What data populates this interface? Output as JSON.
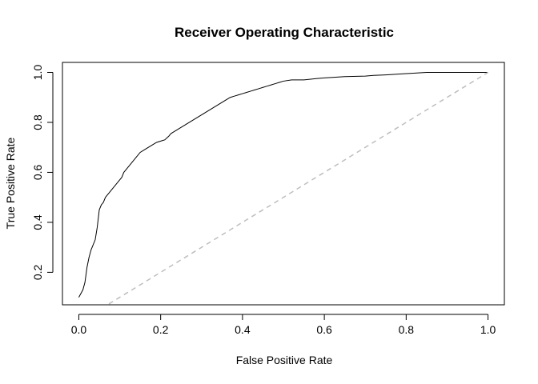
{
  "chart_data": {
    "type": "line",
    "title": "Receiver Operating Characteristic",
    "xlabel": "False Positive Rate",
    "ylabel": "True Positive Rate",
    "xlim": [
      -0.04,
      1.04
    ],
    "ylim": [
      0.07,
      1.04
    ],
    "x_ticks": [
      0.0,
      0.2,
      0.4,
      0.6,
      0.8,
      1.0
    ],
    "x_tick_labels": [
      "0.0",
      "0.2",
      "0.4",
      "0.6",
      "0.8",
      "1.0"
    ],
    "y_ticks": [
      0.2,
      0.4,
      0.6,
      0.8,
      1.0
    ],
    "y_tick_labels": [
      "0.2",
      "0.4",
      "0.6",
      "0.8",
      "1.0"
    ],
    "grid": false,
    "legend": "none",
    "series": [
      {
        "style": "solid",
        "color": "#000000",
        "x": [
          0.0,
          0.01,
          0.015,
          0.02,
          0.025,
          0.03,
          0.04,
          0.045,
          0.05,
          0.055,
          0.06,
          0.065,
          0.07,
          0.075,
          0.08,
          0.085,
          0.09,
          0.095,
          0.1,
          0.105,
          0.11,
          0.12,
          0.125,
          0.13,
          0.14,
          0.15,
          0.16,
          0.17,
          0.18,
          0.19,
          0.2,
          0.21,
          0.22,
          0.225,
          0.23,
          0.25,
          0.26,
          0.27,
          0.28,
          0.29,
          0.3,
          0.31,
          0.32,
          0.33,
          0.34,
          0.35,
          0.36,
          0.37,
          0.38,
          0.39,
          0.4,
          0.41,
          0.42,
          0.43,
          0.44,
          0.45,
          0.46,
          0.47,
          0.48,
          0.49,
          0.5,
          0.52,
          0.55,
          0.58,
          0.6,
          0.62,
          0.65,
          0.7,
          0.72,
          0.75,
          0.8,
          0.85,
          1.0
        ],
        "y": [
          0.1,
          0.13,
          0.16,
          0.22,
          0.26,
          0.29,
          0.33,
          0.38,
          0.45,
          0.47,
          0.48,
          0.5,
          0.51,
          0.52,
          0.53,
          0.54,
          0.55,
          0.56,
          0.57,
          0.58,
          0.6,
          0.62,
          0.63,
          0.64,
          0.66,
          0.68,
          0.69,
          0.7,
          0.71,
          0.72,
          0.725,
          0.73,
          0.745,
          0.755,
          0.76,
          0.78,
          0.79,
          0.8,
          0.81,
          0.82,
          0.83,
          0.84,
          0.85,
          0.86,
          0.87,
          0.88,
          0.89,
          0.9,
          0.905,
          0.91,
          0.915,
          0.92,
          0.925,
          0.93,
          0.935,
          0.94,
          0.945,
          0.95,
          0.955,
          0.96,
          0.965,
          0.97,
          0.97,
          0.975,
          0.978,
          0.98,
          0.983,
          0.985,
          0.988,
          0.99,
          0.995,
          1.0,
          1.0
        ]
      },
      {
        "style": "dashed",
        "color": "#bebebe",
        "x": [
          0.0,
          1.0
        ],
        "y": [
          0.0,
          1.0
        ]
      }
    ]
  }
}
